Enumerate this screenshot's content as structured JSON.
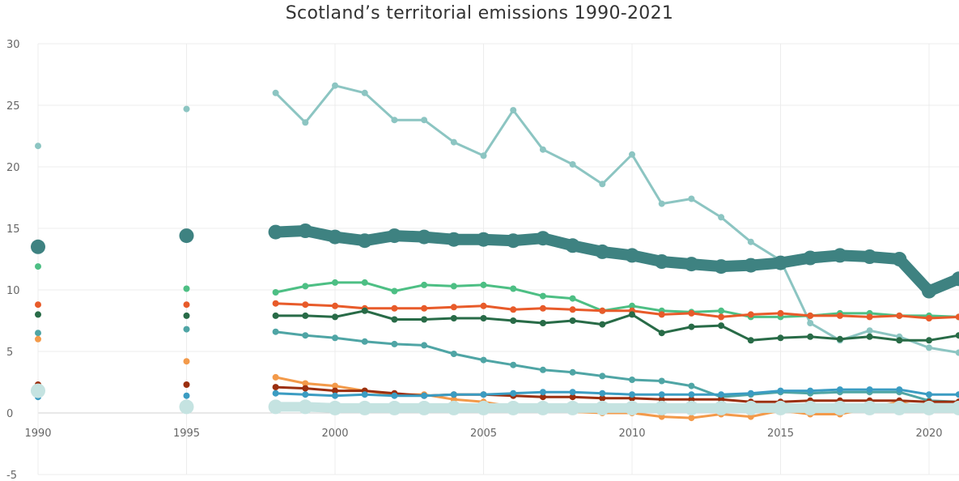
{
  "chart_data": {
    "type": "line",
    "title": "Scotland’s territorial emissions 1990-2021",
    "xlabel": "",
    "ylabel": "",
    "xlim": [
      1990,
      2021
    ],
    "ylim": [
      -5,
      30
    ],
    "x_ticks": [
      1990,
      1995,
      2000,
      2005,
      2010,
      2015,
      2020
    ],
    "y_ticks": [
      -5,
      0,
      5,
      10,
      15,
      20,
      25,
      30
    ],
    "grid": true,
    "x": [
      1990,
      1995,
      1998,
      1999,
      2000,
      2001,
      2002,
      2003,
      2004,
      2005,
      2006,
      2007,
      2008,
      2009,
      2010,
      2011,
      2012,
      2013,
      2014,
      2015,
      2016,
      2017,
      2018,
      2019,
      2020,
      2021
    ],
    "series": [
      {
        "color": "#8cc5c2",
        "width": 3,
        "dot": 4,
        "values": [
          21.7,
          24.7,
          26.0,
          23.6,
          26.6,
          26.0,
          23.8,
          23.8,
          22.0,
          20.9,
          24.6,
          21.4,
          20.2,
          18.6,
          21.0,
          17.0,
          17.4,
          15.9,
          13.9,
          12.4,
          7.3,
          5.9,
          6.7,
          6.2,
          5.3,
          4.9
        ]
      },
      {
        "color": "#3e8281",
        "width": 14,
        "dot": 9,
        "values": [
          13.5,
          14.4,
          14.7,
          14.8,
          14.3,
          14.0,
          14.4,
          14.3,
          14.1,
          14.1,
          14.0,
          14.2,
          13.6,
          13.1,
          12.8,
          12.3,
          12.1,
          11.9,
          12.0,
          12.2,
          12.6,
          12.8,
          12.7,
          12.5,
          9.9,
          10.9
        ]
      },
      {
        "color": "#4dbf84",
        "width": 3,
        "dot": 4,
        "values": [
          11.9,
          10.1,
          9.8,
          10.3,
          10.6,
          10.6,
          9.9,
          10.4,
          10.3,
          10.4,
          10.1,
          9.5,
          9.3,
          8.3,
          8.7,
          8.3,
          8.2,
          8.3,
          7.8,
          7.8,
          7.9,
          8.1,
          8.1,
          7.9,
          7.9,
          7.8
        ]
      },
      {
        "color": "#e85b2a",
        "width": 3,
        "dot": 4,
        "values": [
          8.8,
          8.8,
          8.9,
          8.8,
          8.7,
          8.5,
          8.5,
          8.5,
          8.6,
          8.7,
          8.4,
          8.5,
          8.4,
          8.3,
          8.3,
          8.0,
          8.1,
          7.8,
          8.0,
          8.1,
          7.9,
          7.9,
          7.8,
          7.9,
          7.7,
          7.8
        ]
      },
      {
        "color": "#286b47",
        "width": 3,
        "dot": 4,
        "values": [
          8.0,
          7.9,
          7.9,
          7.9,
          7.8,
          8.3,
          7.6,
          7.6,
          7.7,
          7.7,
          7.5,
          7.3,
          7.5,
          7.2,
          8.0,
          6.5,
          7.0,
          7.1,
          5.9,
          6.1,
          6.2,
          6.0,
          6.2,
          5.9,
          5.9,
          6.3
        ]
      },
      {
        "color": "#4fa5a5",
        "width": 3,
        "dot": 4,
        "values": [
          6.5,
          6.8,
          6.6,
          6.3,
          6.1,
          5.8,
          5.6,
          5.5,
          4.8,
          4.3,
          3.9,
          3.5,
          3.3,
          3.0,
          2.7,
          2.6,
          2.2,
          1.3,
          1.5,
          1.7,
          1.6,
          1.7,
          1.7,
          1.7,
          1.0,
          0.9
        ]
      },
      {
        "color": "#f39a4a",
        "width": 3,
        "dot": 4,
        "values": [
          6.0,
          4.2,
          2.9,
          2.4,
          2.2,
          1.8,
          1.5,
          1.5,
          1.1,
          0.9,
          0.5,
          0.4,
          0.1,
          0.0,
          0.0,
          -0.3,
          -0.4,
          -0.1,
          -0.3,
          0.2,
          -0.1,
          -0.1,
          0.4,
          0.9,
          0.3,
          0.3
        ]
      },
      {
        "color": "#9b2f0f",
        "width": 3,
        "dot": 4,
        "values": [
          2.3,
          2.3,
          2.1,
          2.0,
          1.8,
          1.8,
          1.6,
          1.4,
          1.5,
          1.5,
          1.4,
          1.3,
          1.3,
          1.2,
          1.2,
          1.1,
          1.1,
          1.1,
          0.9,
          0.9,
          1.0,
          1.0,
          1.0,
          1.0,
          0.9,
          0.9
        ]
      },
      {
        "color": "#3b9cc2",
        "width": 3,
        "dot": 4,
        "values": [
          1.3,
          1.4,
          1.6,
          1.5,
          1.4,
          1.5,
          1.4,
          1.4,
          1.5,
          1.5,
          1.6,
          1.7,
          1.7,
          1.6,
          1.5,
          1.5,
          1.5,
          1.5,
          1.6,
          1.8,
          1.8,
          1.9,
          1.9,
          1.9,
          1.5,
          1.5
        ]
      },
      {
        "color": "#c5e3e1",
        "width": 12,
        "dot": 9,
        "values": [
          1.8,
          0.5,
          0.5,
          0.5,
          0.4,
          0.4,
          0.4,
          0.4,
          0.4,
          0.4,
          0.4,
          0.4,
          0.4,
          0.4,
          0.4,
          0.4,
          0.4,
          0.4,
          0.4,
          0.4,
          0.4,
          0.4,
          0.4,
          0.4,
          0.4,
          0.4
        ]
      }
    ]
  }
}
